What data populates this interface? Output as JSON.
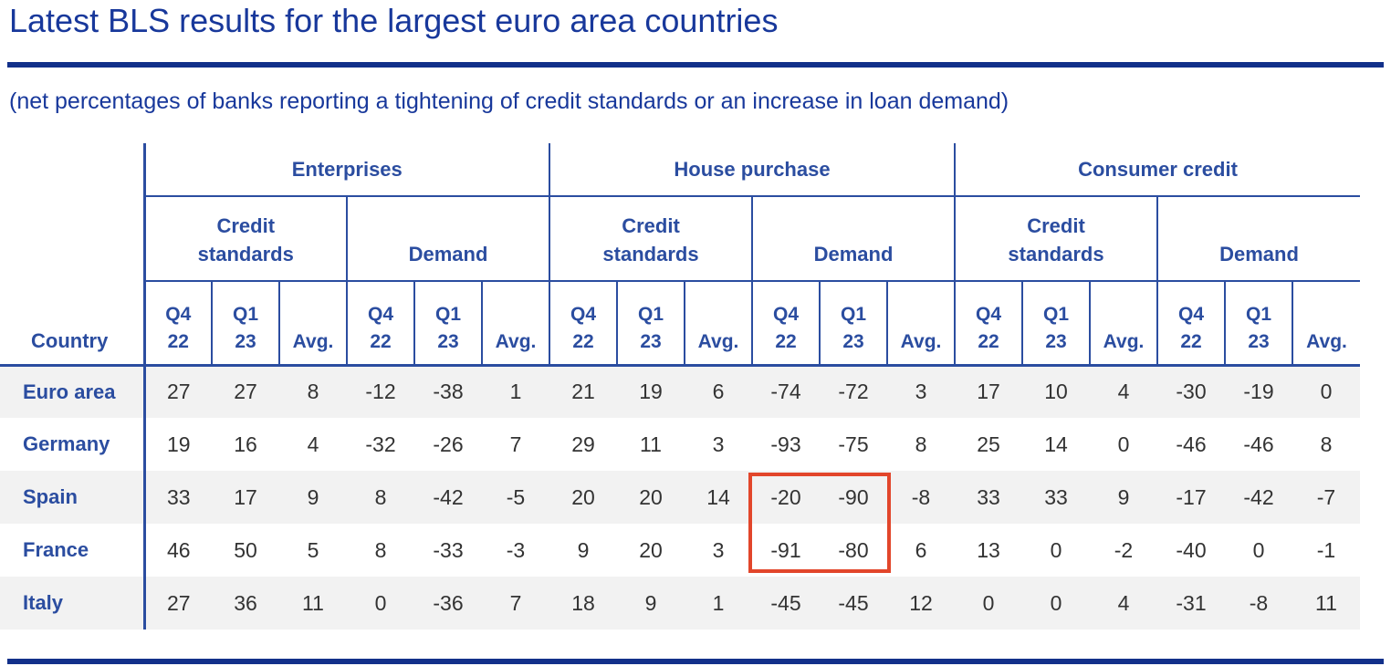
{
  "page": {
    "title": "Latest BLS results for the largest euro area countries",
    "subtitle": "(net percentages of banks reporting a tightening of credit standards or an increase in loan demand)"
  },
  "colors": {
    "heading_blue": "#18389b",
    "rule_navy": "#12308a",
    "table_blue": "#2b4da0",
    "value_text": "#333333",
    "stripe_gray": "#f2f2f2",
    "highlight_red": "#e2462b"
  },
  "chart_data": {
    "type": "table",
    "title": "Latest BLS results for the largest euro area countries",
    "subtitle": "(net percentages of banks reporting a tightening of credit standards or an increase in loan demand)",
    "row_header": "Country",
    "column_groups": [
      {
        "label": "Enterprises",
        "subgroups": [
          {
            "label": "Credit standards",
            "lines": [
              "Credit",
              "standards"
            ]
          },
          {
            "label": "Demand",
            "lines": [
              "Demand"
            ]
          }
        ]
      },
      {
        "label": "House purchase",
        "subgroups": [
          {
            "label": "Credit standards",
            "lines": [
              "Credit",
              "standards"
            ]
          },
          {
            "label": "Demand",
            "lines": [
              "Demand"
            ]
          }
        ]
      },
      {
        "label": "Consumer credit",
        "subgroups": [
          {
            "label": "Credit standards",
            "lines": [
              "Credit",
              "standards"
            ]
          },
          {
            "label": "Demand",
            "lines": [
              "Demand"
            ]
          }
        ]
      }
    ],
    "period_columns": [
      {
        "label": "Q4 22",
        "lines": [
          "Q4",
          "22"
        ]
      },
      {
        "label": "Q1 23",
        "lines": [
          "Q1",
          "23"
        ]
      },
      {
        "label": "Avg.",
        "lines": [
          "Avg."
        ]
      }
    ],
    "rows": [
      {
        "country": "Euro area",
        "values": [
          27,
          27,
          8,
          -12,
          -38,
          1,
          21,
          19,
          6,
          -74,
          -72,
          3,
          17,
          10,
          4,
          -30,
          -19,
          0
        ]
      },
      {
        "country": "Germany",
        "values": [
          19,
          16,
          4,
          -32,
          -26,
          7,
          29,
          11,
          3,
          -93,
          -75,
          8,
          25,
          14,
          0,
          -46,
          -46,
          8
        ]
      },
      {
        "country": "Spain",
        "values": [
          33,
          17,
          9,
          8,
          -42,
          -5,
          20,
          20,
          14,
          -20,
          -90,
          -8,
          33,
          33,
          9,
          -17,
          -42,
          -7
        ]
      },
      {
        "country": "France",
        "values": [
          46,
          50,
          5,
          8,
          -33,
          -3,
          9,
          20,
          3,
          -91,
          -80,
          6,
          13,
          0,
          -2,
          -40,
          0,
          -1
        ]
      },
      {
        "country": "Italy",
        "values": [
          27,
          36,
          11,
          0,
          -36,
          7,
          18,
          9,
          1,
          -45,
          -45,
          12,
          0,
          0,
          4,
          -31,
          -8,
          11
        ]
      }
    ],
    "highlight": {
      "description": "Red box around House purchase Demand Q4 22 and Q1 23 values for Spain and France",
      "rows": [
        "Spain",
        "France"
      ],
      "columns": [
        "House purchase Demand Q4 22",
        "House purchase Demand Q1 23"
      ],
      "row_indices": [
        2,
        3
      ],
      "col_indices": [
        9,
        10
      ]
    }
  }
}
